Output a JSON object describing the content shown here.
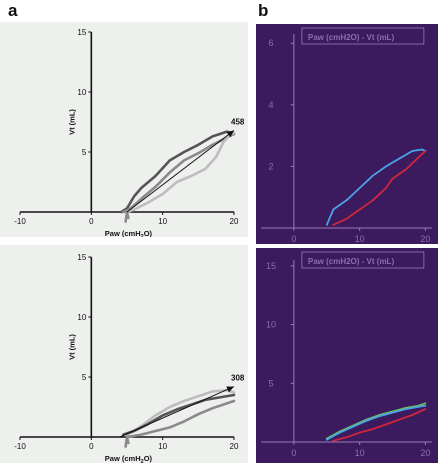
{
  "panel_a_label": "a",
  "panel_b_label": "b",
  "colors": {
    "left_bg": "#eef0ee",
    "right_bg": "#3b1a5e",
    "axis_dark": "#111111",
    "loop_dark": "#555555",
    "loop_mid": "#8a8a8a",
    "loop_light": "#bdbdbd",
    "monitor_axis": "#9a7ab8",
    "monitor_text": "#8f6bb0",
    "monitor_blue": "#4aa3e8",
    "monitor_red": "#d0263c",
    "monitor_green": "#6bbf5a"
  },
  "chart_data": [
    {
      "id": "a-top",
      "type": "line",
      "xlabel": "Paw (cmH2O)",
      "ylabel": "Vt (mL)",
      "xlim": [
        -10,
        20
      ],
      "ylim": [
        0,
        15
      ],
      "xticks": [
        "-10",
        "0",
        "10",
        "20"
      ],
      "yticks": [
        "5",
        "10",
        "15"
      ],
      "annotation": "458",
      "arrow": {
        "from": [
          5,
          0
        ],
        "to": [
          20,
          6.8
        ]
      },
      "series": [
        {
          "shade": "dark",
          "values": [
            [
              4.2,
              0
            ],
            [
              5,
              0.3
            ],
            [
              6,
              1.3
            ],
            [
              7,
              2.0
            ],
            [
              9,
              3.0
            ],
            [
              11,
              4.3
            ],
            [
              13,
              5.0
            ],
            [
              15,
              5.6
            ],
            [
              17,
              6.3
            ],
            [
              19,
              6.7
            ],
            [
              20,
              6.5
            ]
          ]
        },
        {
          "shade": "mid",
          "values": [
            [
              4.5,
              0
            ],
            [
              5.5,
              0.3
            ],
            [
              7,
              1.1
            ],
            [
              9,
              2.1
            ],
            [
              11,
              3.3
            ],
            [
              13,
              4.3
            ],
            [
              15,
              4.9
            ],
            [
              17,
              5.6
            ],
            [
              19,
              6.2
            ],
            [
              20,
              6.5
            ]
          ]
        },
        {
          "shade": "light",
          "values": [
            [
              5,
              0
            ],
            [
              6,
              0.2
            ],
            [
              8,
              0.8
            ],
            [
              10,
              1.5
            ],
            [
              12,
              2.5
            ],
            [
              14,
              3.0
            ],
            [
              16,
              3.6
            ],
            [
              17.5,
              4.6
            ],
            [
              18.5,
              5.8
            ],
            [
              19.5,
              6.5
            ],
            [
              20,
              6.6
            ]
          ]
        },
        {
          "shade": "mid",
          "values": [
            [
              4.8,
              -0.8
            ],
            [
              5,
              0
            ],
            [
              5.2,
              -0.5
            ]
          ]
        }
      ]
    },
    {
      "id": "a-bottom",
      "type": "line",
      "xlabel": "Paw (cmH2O)",
      "ylabel": "Vt (mL)",
      "xlim": [
        -10,
        20
      ],
      "ylim": [
        0,
        15
      ],
      "xticks": [
        "-10",
        "0",
        "10",
        "20"
      ],
      "yticks": [
        "5",
        "10",
        "15"
      ],
      "annotation": "308",
      "arrow": {
        "from": [
          4,
          0
        ],
        "to": [
          20,
          4.2
        ]
      },
      "series": [
        {
          "shade": "light",
          "values": [
            [
              5,
              0.2
            ],
            [
              7,
              0.9
            ],
            [
              9,
              1.8
            ],
            [
              11,
              2.5
            ],
            [
              13,
              3.0
            ],
            [
              15,
              3.4
            ],
            [
              17,
              3.8
            ],
            [
              19,
              3.9
            ],
            [
              20,
              3.7
            ]
          ]
        },
        {
          "shade": "dark",
          "values": [
            [
              4.5,
              0.2
            ],
            [
              6,
              0.5
            ],
            [
              8,
              1.1
            ],
            [
              10,
              1.8
            ],
            [
              12,
              2.3
            ],
            [
              14,
              2.7
            ],
            [
              16,
              3.1
            ],
            [
              18,
              3.3
            ],
            [
              20,
              3.5
            ]
          ]
        },
        {
          "shade": "mid",
          "values": [
            [
              5,
              0
            ],
            [
              7,
              0.2
            ],
            [
              9,
              0.5
            ],
            [
              11,
              0.8
            ],
            [
              13,
              1.3
            ],
            [
              15,
              1.9
            ],
            [
              17,
              2.4
            ],
            [
              19,
              2.8
            ],
            [
              20,
              3.0
            ]
          ]
        },
        {
          "shade": "mid",
          "values": [
            [
              4.8,
              -0.8
            ],
            [
              5,
              0
            ],
            [
              5.2,
              -0.5
            ]
          ]
        }
      ]
    },
    {
      "id": "b-top",
      "type": "line",
      "title": "Paw (cmH2O) - Vt (mL)",
      "xlim": [
        -5,
        21
      ],
      "ylim": [
        0,
        6.3
      ],
      "xticks": [
        "0",
        "10",
        "20"
      ],
      "yticks": [
        "2",
        "4",
        "6"
      ],
      "series": [
        {
          "shade": "blue",
          "values": [
            [
              5,
              0.1
            ],
            [
              6,
              0.6
            ],
            [
              8,
              0.9
            ],
            [
              10,
              1.3
            ],
            [
              12,
              1.7
            ],
            [
              14,
              2.0
            ],
            [
              16,
              2.25
            ],
            [
              18,
              2.5
            ],
            [
              19.5,
              2.55
            ],
            [
              20,
              2.5
            ]
          ]
        },
        {
          "shade": "red",
          "values": [
            [
              6,
              0.1
            ],
            [
              8,
              0.3
            ],
            [
              10,
              0.6
            ],
            [
              12,
              0.9
            ],
            [
              14,
              1.3
            ],
            [
              15,
              1.6
            ],
            [
              17,
              1.9
            ],
            [
              19,
              2.3
            ],
            [
              20,
              2.5
            ]
          ]
        }
      ]
    },
    {
      "id": "b-bottom",
      "type": "line",
      "title": "Paw (cmH2O) - Vt (mL)",
      "xlim": [
        -5,
        21
      ],
      "ylim": [
        0,
        15.5
      ],
      "xticks": [
        "0",
        "10",
        "20"
      ],
      "yticks": [
        "5",
        "10",
        "15"
      ],
      "series": [
        {
          "shade": "green",
          "values": [
            [
              5,
              0.3
            ],
            [
              7,
              0.9
            ],
            [
              9,
              1.4
            ],
            [
              11,
              1.9
            ],
            [
              13,
              2.3
            ],
            [
              15,
              2.6
            ],
            [
              17,
              2.9
            ],
            [
              19,
              3.1
            ],
            [
              20,
              3.3
            ]
          ]
        },
        {
          "shade": "blue",
          "values": [
            [
              5,
              0.2
            ],
            [
              7,
              0.8
            ],
            [
              9,
              1.3
            ],
            [
              11,
              1.8
            ],
            [
              13,
              2.2
            ],
            [
              15,
              2.5
            ],
            [
              17,
              2.8
            ],
            [
              19,
              3.0
            ],
            [
              20,
              3.1
            ]
          ]
        },
        {
          "shade": "red",
          "values": [
            [
              6,
              0.1
            ],
            [
              8,
              0.4
            ],
            [
              10,
              0.8
            ],
            [
              12,
              1.1
            ],
            [
              14,
              1.5
            ],
            [
              16,
              1.9
            ],
            [
              18,
              2.3
            ],
            [
              20,
              2.8
            ]
          ]
        }
      ]
    }
  ]
}
